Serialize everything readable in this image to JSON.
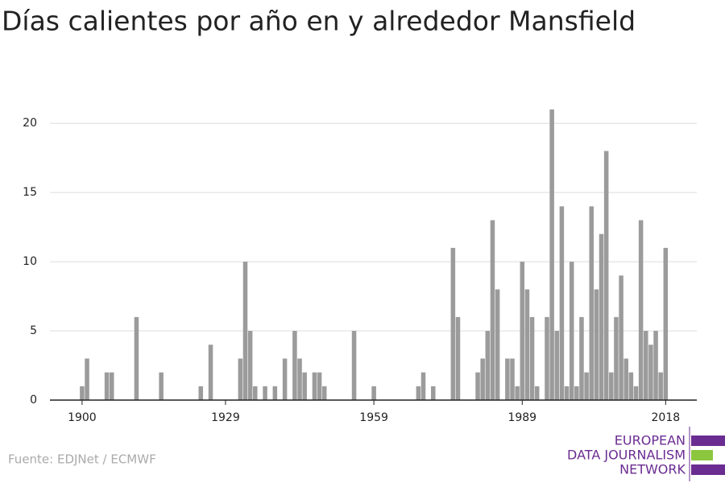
{
  "chart_data": {
    "type": "bar",
    "title": "Días calientes por año en y alrededor Mansfield",
    "source": "Fuente: EDJNet / ECMWF",
    "logo": [
      "EUROPEAN",
      "DATA JOURNALISM",
      "NETWORK"
    ],
    "color": "#9b9b9b",
    "x": [
      1900,
      1901,
      1905,
      1906,
      1911,
      1916,
      1924,
      1926,
      1932,
      1933,
      1934,
      1935,
      1937,
      1939,
      1941,
      1943,
      1944,
      1945,
      1947,
      1948,
      1949,
      1955,
      1959,
      1968,
      1969,
      1971,
      1975,
      1976,
      1980,
      1981,
      1982,
      1983,
      1984,
      1986,
      1987,
      1988,
      1989,
      1990,
      1991,
      1992,
      1994,
      1995,
      1996,
      1997,
      1998,
      1999,
      2000,
      2001,
      2002,
      2003,
      2004,
      2005,
      2006,
      2007,
      2008,
      2009,
      2010,
      2011,
      2012,
      2013,
      2014,
      2015,
      2016,
      2017,
      2018
    ],
    "values": [
      1,
      3,
      2,
      2,
      6,
      2,
      1,
      4,
      3,
      10,
      5,
      1,
      1,
      1,
      3,
      5,
      3,
      2,
      2,
      2,
      1,
      5,
      1,
      1,
      2,
      1,
      11,
      6,
      2,
      3,
      5,
      13,
      8,
      3,
      3,
      1,
      10,
      8,
      6,
      1,
      6,
      21,
      5,
      14,
      1,
      10,
      1,
      6,
      2,
      14,
      8,
      12,
      18,
      2,
      6,
      9,
      3,
      2,
      1,
      13,
      5,
      4,
      5,
      2,
      11
    ],
    "xlim": [
      1893.5,
      2024.3
    ],
    "xticks": [
      1900,
      1929,
      1959,
      1989,
      2018
    ],
    "ylim": [
      0,
      21
    ],
    "yticks": [
      0,
      5,
      10,
      15,
      20
    ],
    "grid": true
  }
}
